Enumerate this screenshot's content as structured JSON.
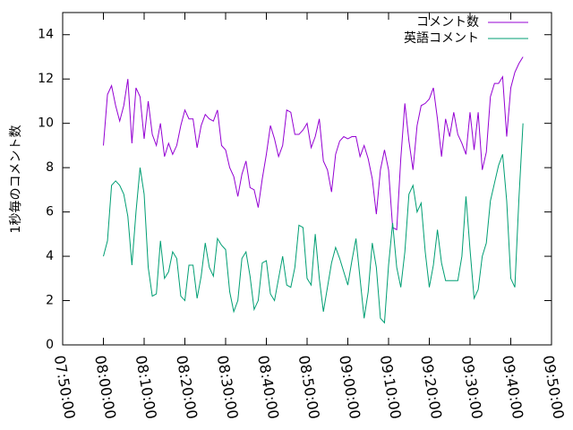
{
  "chart_data": {
    "type": "line",
    "ylabel": "1秒毎のコメント数",
    "x": [
      "08:00:00",
      "08:01:00",
      "08:02:00",
      "08:03:00",
      "08:04:00",
      "08:05:00",
      "08:06:00",
      "08:07:00",
      "08:08:00",
      "08:09:00",
      "08:10:00",
      "08:11:00",
      "08:12:00",
      "08:13:00",
      "08:14:00",
      "08:15:00",
      "08:16:00",
      "08:17:00",
      "08:18:00",
      "08:19:00",
      "08:20:00",
      "08:21:00",
      "08:22:00",
      "08:23:00",
      "08:24:00",
      "08:25:00",
      "08:26:00",
      "08:27:00",
      "08:28:00",
      "08:29:00",
      "08:30:00",
      "08:31:00",
      "08:32:00",
      "08:33:00",
      "08:34:00",
      "08:35:00",
      "08:36:00",
      "08:37:00",
      "08:38:00",
      "08:39:00",
      "08:40:00",
      "08:41:00",
      "08:42:00",
      "08:43:00",
      "08:44:00",
      "08:45:00",
      "08:46:00",
      "08:47:00",
      "08:48:00",
      "08:49:00",
      "08:50:00",
      "08:51:00",
      "08:52:00",
      "08:53:00",
      "08:54:00",
      "08:55:00",
      "08:56:00",
      "08:57:00",
      "08:58:00",
      "08:59:00",
      "09:00:00",
      "09:01:00",
      "09:02:00",
      "09:03:00",
      "09:04:00",
      "09:05:00",
      "09:06:00",
      "09:07:00",
      "09:08:00",
      "09:09:00",
      "09:10:00",
      "09:11:00",
      "09:12:00",
      "09:13:00",
      "09:14:00",
      "09:15:00",
      "09:16:00",
      "09:17:00",
      "09:18:00",
      "09:19:00",
      "09:20:00",
      "09:21:00",
      "09:22:00",
      "09:23:00",
      "09:24:00",
      "09:25:00",
      "09:26:00",
      "09:27:00",
      "09:28:00",
      "09:29:00",
      "09:30:00",
      "09:31:00",
      "09:32:00",
      "09:33:00",
      "09:34:00",
      "09:35:00",
      "09:36:00",
      "09:37:00",
      "09:38:00",
      "09:39:00",
      "09:40:00",
      "09:41:00",
      "09:42:00",
      "09:43:00"
    ],
    "series": [
      {
        "name": "コメント数",
        "color": "#9400d3",
        "values": [
          9,
          11.3,
          11.7,
          10.8,
          10.1,
          10.8,
          12,
          9.1,
          11.6,
          11.2,
          9.3,
          11,
          9.5,
          9,
          10,
          8.5,
          9.1,
          8.6,
          9,
          9.9,
          10.6,
          10.2,
          10.2,
          8.9,
          9.9,
          10.4,
          10.2,
          10.1,
          10.6,
          9,
          8.8,
          8,
          7.6,
          6.7,
          7.7,
          8.3,
          7.1,
          7,
          6.2,
          7.5,
          8.6,
          9.9,
          9.3,
          8.5,
          9,
          10.6,
          10.5,
          9.5,
          9.5,
          9.7,
          10,
          8.9,
          9.4,
          10.2,
          8.3,
          7.9,
          6.9,
          8.6,
          9.2,
          9.4,
          9.3,
          9.4,
          9.4,
          8.5,
          9,
          8.4,
          7.5,
          5.9,
          7.9,
          8.8,
          7.9,
          5.3,
          5.2,
          8.4,
          10.9,
          9.2,
          7.9,
          9.9,
          10.8,
          10.9,
          11.1,
          11.6,
          10.2,
          8.5,
          10.2,
          9.4,
          10.5,
          9.5,
          9.1,
          8.6,
          10.5,
          8.8,
          10.5,
          7.9,
          8.7,
          11.2,
          11.8,
          11.8,
          12.1,
          9.4,
          11.6,
          12.3,
          12.7,
          13
        ]
      },
      {
        "name": "英語コメント",
        "color": "#009e73",
        "values": [
          4,
          4.7,
          7.2,
          7.4,
          7.2,
          6.8,
          5.8,
          3.6,
          6,
          8,
          6.8,
          3.5,
          2.2,
          2.3,
          4.7,
          3,
          3.3,
          4.2,
          3.9,
          2.2,
          2,
          3.6,
          3.6,
          2.1,
          3.1,
          4.6,
          3.5,
          3.1,
          4.8,
          4.5,
          4.3,
          2.4,
          1.5,
          2,
          3.9,
          4.2,
          3.1,
          1.6,
          2,
          3.7,
          3.8,
          2.3,
          2,
          3,
          4,
          2.7,
          2.6,
          3.5,
          5.4,
          5.3,
          3,
          2.7,
          5,
          3,
          1.5,
          2.6,
          3.7,
          4.4,
          3.9,
          3.3,
          2.7,
          3.8,
          4.8,
          3,
          1.2,
          2.4,
          4.6,
          3.5,
          1.2,
          1,
          3.6,
          5.5,
          3.5,
          2.6,
          4.2,
          6.8,
          7.2,
          6,
          6.4,
          4.2,
          2.6,
          3.6,
          5.2,
          3.7,
          2.9,
          2.9,
          2.9,
          2.9,
          4,
          6.7,
          4.3,
          2.1,
          2.5,
          4,
          4.6,
          6.5,
          7.3,
          8.1,
          8.6,
          6.5,
          3,
          2.6,
          6.6,
          10
        ]
      }
    ],
    "xlim": [
      "07:50:00",
      "09:50:00"
    ],
    "xticks": [
      "07:50:00",
      "08:00:00",
      "08:10:00",
      "08:20:00",
      "08:30:00",
      "08:40:00",
      "08:50:00",
      "09:00:00",
      "09:10:00",
      "09:20:00",
      "09:30:00",
      "09:40:00",
      "09:50:00"
    ],
    "ylim": [
      0,
      15
    ],
    "yticks": [
      0,
      2,
      4,
      6,
      8,
      10,
      12,
      14
    ],
    "legend": "top-right"
  }
}
